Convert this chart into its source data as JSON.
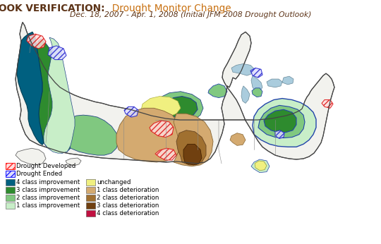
{
  "title_bold": "DROUGHT OUTLOOK VERIFICATION:",
  "title_normal": "  Drought Monitor Change",
  "subtitle": "Dec. 18, 2007 - Apr. 1, 2008 (Initial JFM 2008 Drought Outlook)",
  "title_bold_color": "#5C3317",
  "title_normal_color": "#C87010",
  "subtitle_color": "#5C3317",
  "background_color": "#FFFFFF",
  "figsize": [
    5.4,
    3.46
  ],
  "dpi": 100,
  "legend_hatch": [
    {
      "label": "Drought Developed",
      "fc": "#FFDDDD",
      "ec": "#FF2222",
      "hatch": "////"
    },
    {
      "label": "Drought Ended",
      "fc": "#DDDDFF",
      "ec": "#2222FF",
      "hatch": "////"
    }
  ],
  "legend_solid_left": [
    {
      "label": "4 class improvement",
      "color": "#006080"
    },
    {
      "label": "3 class improvement",
      "color": "#2E8B2E"
    },
    {
      "label": "2 class improvement",
      "color": "#80C880"
    },
    {
      "label": "1 class improvement",
      "color": "#C8EEC8"
    }
  ],
  "legend_solid_right": [
    {
      "label": "unchanged",
      "color": "#F0F080"
    },
    {
      "label": "1 class deterioration",
      "color": "#D4AA70"
    },
    {
      "label": "2 class deterioration",
      "color": "#A07030"
    },
    {
      "label": "3 class deterioration",
      "color": "#704010"
    },
    {
      "label": "4 class deterioration",
      "color": "#C01040"
    }
  ]
}
